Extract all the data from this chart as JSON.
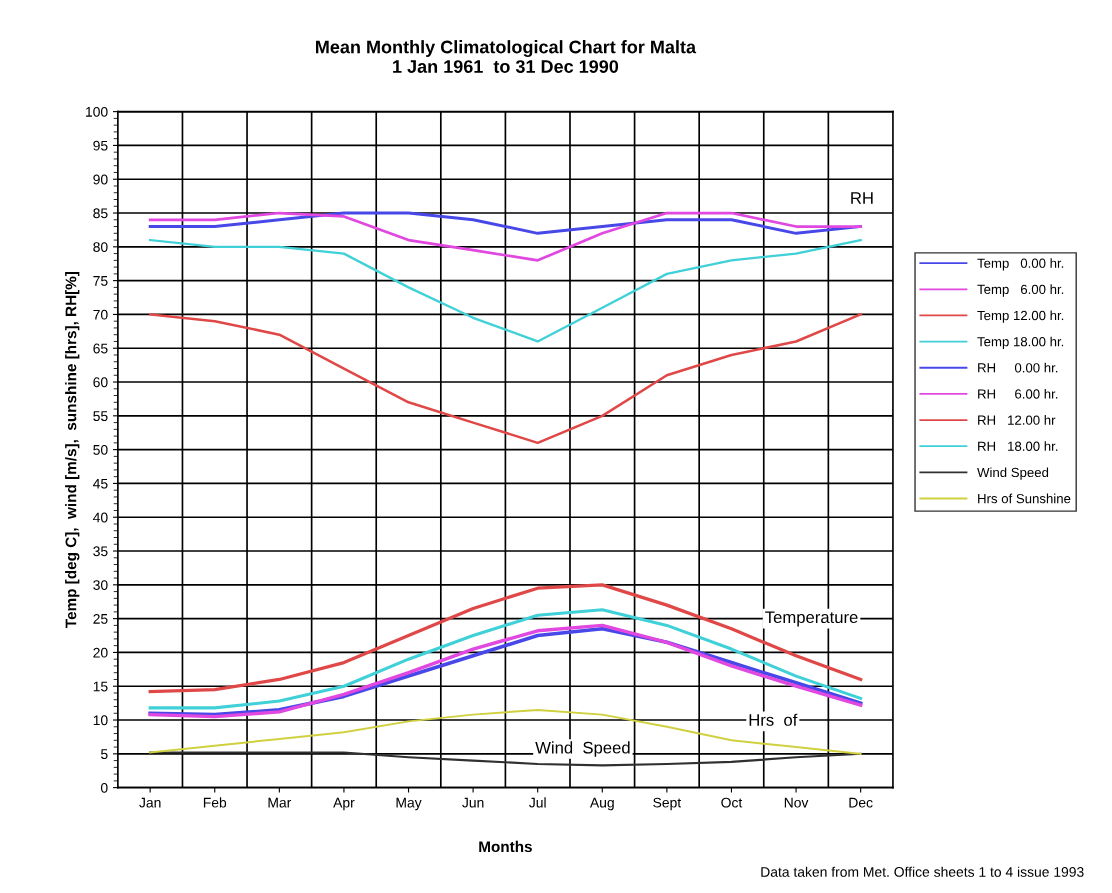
{
  "chart_data": {
    "type": "line",
    "title": "Mean Monthly Climatological Chart for Malta\n1 Jan 1961  to 31 Dec 1990",
    "xlabel": "Months",
    "ylabel": "Temp [deg C],  wind [m/s],  sunshine [hrs], RH[%]",
    "categories": [
      "Jan",
      "Feb",
      "Mar",
      "Apr",
      "May",
      "Jun",
      "Jul",
      "Aug",
      "Sept",
      "Oct",
      "Nov",
      "Dec"
    ],
    "series": [
      {
        "name": "Temp   0.00 hr.",
        "color": "#4848e8",
        "values": [
          11,
          10.8,
          11.5,
          13.5,
          16.5,
          19.5,
          22.5,
          23.5,
          21.5,
          18.5,
          15.5,
          12.5
        ]
      },
      {
        "name": "Temp   6.00 hr.",
        "color": "#e048e0",
        "values": [
          10.8,
          10.5,
          11.2,
          13.8,
          17,
          20.5,
          23.2,
          24,
          21.5,
          18,
          15,
          12.2
        ]
      },
      {
        "name": "Temp 12.00 hr.",
        "color": "#e04848",
        "values": [
          14.2,
          14.5,
          16,
          18.5,
          22.5,
          26.5,
          29.5,
          30,
          27,
          23.5,
          19.5,
          16
        ]
      },
      {
        "name": "Temp 18.00 hr.",
        "color": "#40d0d8",
        "values": [
          11.8,
          11.8,
          12.8,
          15,
          19,
          22.5,
          25.5,
          26.3,
          24,
          20.5,
          16.5,
          13.2
        ]
      },
      {
        "name": "RH     0.00 hr.",
        "color": "#4848e8",
        "values": [
          83,
          83,
          84,
          85,
          85,
          84,
          82,
          83,
          84,
          84,
          82,
          83
        ]
      },
      {
        "name": "RH     6.00 hr.",
        "color": "#e048e0",
        "values": [
          84,
          84,
          85,
          84.5,
          81,
          79.5,
          78,
          82,
          85,
          85,
          83,
          83
        ]
      },
      {
        "name": "RH   12.00 hr",
        "color": "#e04848",
        "values": [
          70,
          69,
          67,
          62,
          57,
          54,
          51,
          55,
          61,
          64,
          66,
          70
        ]
      },
      {
        "name": "RH   18.00 hr.",
        "color": "#40d0d8",
        "values": [
          81,
          80,
          80,
          79,
          74,
          69.5,
          66,
          71,
          76,
          78,
          79,
          81
        ]
      },
      {
        "name": "Wind Speed",
        "color": "#303030",
        "values": [
          5.2,
          5.2,
          5.2,
          5.2,
          4.5,
          4,
          3.5,
          3.3,
          3.5,
          3.8,
          4.5,
          5
        ]
      },
      {
        "name": "Hrs of Sunshine",
        "color": "#d0d040",
        "values": [
          5.2,
          6.2,
          7.2,
          8.2,
          9.8,
          10.8,
          11.5,
          10.8,
          9,
          7,
          6,
          5
        ]
      }
    ],
    "ylim": [
      0,
      100
    ],
    "yticks": [
      0,
      5,
      10,
      15,
      20,
      25,
      30,
      35,
      40,
      45,
      50,
      55,
      60,
      65,
      70,
      75,
      80,
      85,
      90,
      95,
      100
    ],
    "grid": true,
    "legend": "right",
    "marker": "none",
    "line_style": "solid",
    "annotations": [
      "RH",
      "Temperature",
      "Hrs  of",
      "Wind  Speed",
      "Data taken from Met. Office sheets 1 to 4 issue 1993"
    ]
  }
}
